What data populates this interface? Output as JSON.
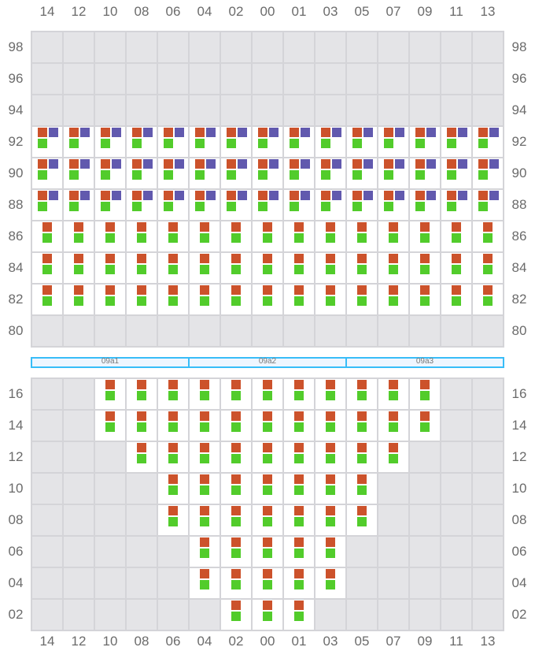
{
  "columns": [
    "14",
    "12",
    "10",
    "08",
    "06",
    "04",
    "02",
    "00",
    "01",
    "03",
    "05",
    "07",
    "09",
    "11",
    "13"
  ],
  "colors": {
    "orange": "#cc522b",
    "purple": "#6159ae",
    "green": "#52cc2b",
    "empty": "#e4e4e7",
    "band_border": "#38bdf8"
  },
  "top_section": {
    "rows": [
      {
        "label": "98",
        "seats": [],
        "type": "none"
      },
      {
        "label": "96",
        "seats": [],
        "type": "none"
      },
      {
        "label": "94",
        "seats": [],
        "type": "none"
      },
      {
        "label": "92",
        "seats": "all",
        "type": "orange-purple-green"
      },
      {
        "label": "90",
        "seats": "all",
        "type": "orange-purple-green"
      },
      {
        "label": "88",
        "seats": "all",
        "type": "orange-purple-green"
      },
      {
        "label": "86",
        "seats": "all",
        "type": "orange-green"
      },
      {
        "label": "84",
        "seats": "all",
        "type": "orange-green"
      },
      {
        "label": "82",
        "seats": "all",
        "type": "orange-green"
      },
      {
        "label": "80",
        "seats": [],
        "type": "none"
      }
    ]
  },
  "bands": [
    {
      "label": "09a1"
    },
    {
      "label": "09a2"
    },
    {
      "label": "09a3"
    }
  ],
  "bottom_section": {
    "rows": [
      {
        "label": "16",
        "seats": [
          "10",
          "08",
          "06",
          "04",
          "02",
          "00",
          "01",
          "03",
          "05",
          "07",
          "09"
        ],
        "type": "orange-green"
      },
      {
        "label": "14",
        "seats": [
          "10",
          "08",
          "06",
          "04",
          "02",
          "00",
          "01",
          "03",
          "05",
          "07",
          "09"
        ],
        "type": "orange-green"
      },
      {
        "label": "12",
        "seats": [
          "08",
          "06",
          "04",
          "02",
          "00",
          "01",
          "03",
          "05",
          "07"
        ],
        "type": "orange-green"
      },
      {
        "label": "10",
        "seats": [
          "06",
          "04",
          "02",
          "00",
          "01",
          "03",
          "05"
        ],
        "type": "orange-green"
      },
      {
        "label": "08",
        "seats": [
          "06",
          "04",
          "02",
          "00",
          "01",
          "03",
          "05"
        ],
        "type": "orange-green"
      },
      {
        "label": "06",
        "seats": [
          "04",
          "02",
          "00",
          "01",
          "03"
        ],
        "type": "orange-green"
      },
      {
        "label": "04",
        "seats": [
          "04",
          "02",
          "00",
          "01",
          "03"
        ],
        "type": "orange-green"
      },
      {
        "label": "02",
        "seats": [
          "02",
          "00",
          "01"
        ],
        "type": "orange-green"
      }
    ]
  }
}
